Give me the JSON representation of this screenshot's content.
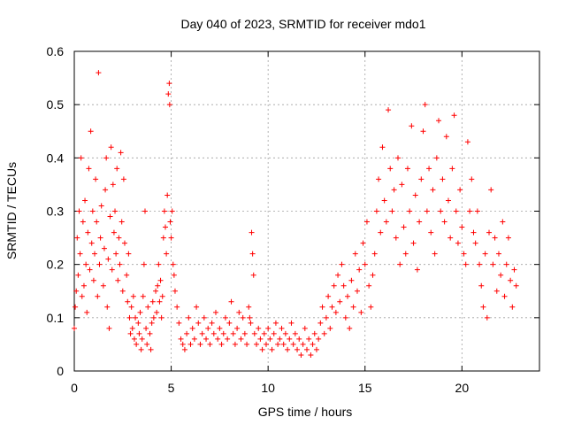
{
  "chart_data": {
    "type": "scatter",
    "title": "Day 040 of 2023, SRMTID for receiver mdo1",
    "xlabel": "GPS time / hours",
    "ylabel": "SRMTID / TECUs",
    "xlim": [
      0,
      24
    ],
    "ylim": [
      0,
      0.6
    ],
    "xticks": [
      0,
      5,
      10,
      15,
      20
    ],
    "xtick_labels": [
      "0",
      "5",
      "10",
      "15",
      "20"
    ],
    "yticks": [
      0,
      0.1,
      0.2,
      0.3,
      0.4,
      0.5,
      0.6
    ],
    "ytick_labels": [
      "0",
      "0.1",
      "0.2",
      "0.3",
      "0.4",
      "0.5",
      "0.6"
    ],
    "grid": true,
    "marker": "plus",
    "color": "#ff0000",
    "series": [
      {
        "name": "SRMTID",
        "points": [
          [
            0.0,
            0.08
          ],
          [
            0.05,
            0.12
          ],
          [
            0.1,
            0.15
          ],
          [
            0.15,
            0.25
          ],
          [
            0.2,
            0.18
          ],
          [
            0.25,
            0.3
          ],
          [
            0.3,
            0.22
          ],
          [
            0.35,
            0.4
          ],
          [
            0.4,
            0.14
          ],
          [
            0.45,
            0.28
          ],
          [
            0.5,
            0.16
          ],
          [
            0.55,
            0.32
          ],
          [
            0.6,
            0.2
          ],
          [
            0.65,
            0.11
          ],
          [
            0.7,
            0.26
          ],
          [
            0.75,
            0.38
          ],
          [
            0.8,
            0.19
          ],
          [
            0.85,
            0.45
          ],
          [
            0.9,
            0.24
          ],
          [
            0.95,
            0.3
          ],
          [
            1.0,
            0.17
          ],
          [
            1.05,
            0.22
          ],
          [
            1.1,
            0.36
          ],
          [
            1.15,
            0.28
          ],
          [
            1.2,
            0.14
          ],
          [
            1.25,
            0.56
          ],
          [
            1.3,
            0.2
          ],
          [
            1.35,
            0.25
          ],
          [
            1.4,
            0.31
          ],
          [
            1.5,
            0.16
          ],
          [
            1.55,
            0.23
          ],
          [
            1.6,
            0.34
          ],
          [
            1.65,
            0.4
          ],
          [
            1.7,
            0.12
          ],
          [
            1.75,
            0.21
          ],
          [
            1.8,
            0.08
          ],
          [
            1.85,
            0.29
          ],
          [
            1.9,
            0.42
          ],
          [
            1.95,
            0.19
          ],
          [
            2.0,
            0.35
          ],
          [
            2.05,
            0.26
          ],
          [
            2.1,
            0.3
          ],
          [
            2.15,
            0.22
          ],
          [
            2.2,
            0.38
          ],
          [
            2.25,
            0.17
          ],
          [
            2.3,
            0.25
          ],
          [
            2.35,
            0.2
          ],
          [
            2.4,
            0.41
          ],
          [
            2.45,
            0.28
          ],
          [
            2.5,
            0.15
          ],
          [
            2.55,
            0.36
          ],
          [
            2.6,
            0.24
          ],
          [
            2.7,
            0.18
          ],
          [
            2.75,
            0.13
          ],
          [
            2.8,
            0.22
          ],
          [
            2.85,
            0.1
          ],
          [
            2.9,
            0.07
          ],
          [
            2.95,
            0.12
          ],
          [
            3.0,
            0.08
          ],
          [
            3.05,
            0.14
          ],
          [
            3.1,
            0.06
          ],
          [
            3.15,
            0.1
          ],
          [
            3.2,
            0.05
          ],
          [
            3.3,
            0.09
          ],
          [
            3.35,
            0.07
          ],
          [
            3.4,
            0.11
          ],
          [
            3.45,
            0.04
          ],
          [
            3.5,
            0.06
          ],
          [
            3.55,
            0.14
          ],
          [
            3.6,
            0.2
          ],
          [
            3.65,
            0.3
          ],
          [
            3.7,
            0.08
          ],
          [
            3.75,
            0.05
          ],
          [
            3.8,
            0.12
          ],
          [
            3.9,
            0.07
          ],
          [
            3.95,
            0.04
          ],
          [
            4.0,
            0.09
          ],
          [
            4.05,
            0.13
          ],
          [
            4.1,
            0.1
          ],
          [
            4.2,
            0.15
          ],
          [
            4.25,
            0.11
          ],
          [
            4.3,
            0.16
          ],
          [
            4.35,
            0.2
          ],
          [
            4.4,
            0.13
          ],
          [
            4.45,
            0.17
          ],
          [
            4.5,
            0.1
          ],
          [
            4.55,
            0.14
          ],
          [
            4.6,
            0.25
          ],
          [
            4.65,
            0.3
          ],
          [
            4.7,
            0.27
          ],
          [
            4.75,
            0.22
          ],
          [
            4.8,
            0.33
          ],
          [
            4.85,
            0.52
          ],
          [
            4.9,
            0.54
          ],
          [
            4.92,
            0.5
          ],
          [
            4.95,
            0.28
          ],
          [
            5.0,
            0.25
          ],
          [
            5.05,
            0.3
          ],
          [
            5.1,
            0.2
          ],
          [
            5.15,
            0.18
          ],
          [
            5.2,
            0.15
          ],
          [
            5.3,
            0.12
          ],
          [
            5.4,
            0.09
          ],
          [
            5.5,
            0.06
          ],
          [
            5.6,
            0.05
          ],
          [
            5.7,
            0.04
          ],
          [
            5.8,
            0.07
          ],
          [
            5.9,
            0.1
          ],
          [
            6.0,
            0.05
          ],
          [
            6.1,
            0.08
          ],
          [
            6.2,
            0.06
          ],
          [
            6.3,
            0.12
          ],
          [
            6.4,
            0.09
          ],
          [
            6.5,
            0.05
          ],
          [
            6.6,
            0.07
          ],
          [
            6.7,
            0.1
          ],
          [
            6.8,
            0.06
          ],
          [
            6.9,
            0.08
          ],
          [
            7.0,
            0.05
          ],
          [
            7.1,
            0.09
          ],
          [
            7.2,
            0.07
          ],
          [
            7.3,
            0.11
          ],
          [
            7.4,
            0.06
          ],
          [
            7.5,
            0.08
          ],
          [
            7.6,
            0.05
          ],
          [
            7.7,
            0.07
          ],
          [
            7.8,
            0.1
          ],
          [
            7.9,
            0.06
          ],
          [
            8.0,
            0.09
          ],
          [
            8.1,
            0.13
          ],
          [
            8.2,
            0.07
          ],
          [
            8.3,
            0.05
          ],
          [
            8.4,
            0.08
          ],
          [
            8.5,
            0.11
          ],
          [
            8.6,
            0.06
          ],
          [
            8.7,
            0.1
          ],
          [
            8.8,
            0.07
          ],
          [
            8.9,
            0.05
          ],
          [
            9.0,
            0.12
          ],
          [
            9.05,
            0.1
          ],
          [
            9.1,
            0.09
          ],
          [
            9.15,
            0.26
          ],
          [
            9.2,
            0.22
          ],
          [
            9.25,
            0.18
          ],
          [
            9.3,
            0.07
          ],
          [
            9.4,
            0.05
          ],
          [
            9.5,
            0.08
          ],
          [
            9.6,
            0.06
          ],
          [
            9.7,
            0.04
          ],
          [
            9.8,
            0.07
          ],
          [
            9.9,
            0.05
          ],
          [
            10.0,
            0.08
          ],
          [
            10.1,
            0.06
          ],
          [
            10.2,
            0.04
          ],
          [
            10.3,
            0.07
          ],
          [
            10.4,
            0.09
          ],
          [
            10.5,
            0.05
          ],
          [
            10.6,
            0.06
          ],
          [
            10.7,
            0.08
          ],
          [
            10.8,
            0.05
          ],
          [
            10.9,
            0.07
          ],
          [
            11.0,
            0.04
          ],
          [
            11.1,
            0.06
          ],
          [
            11.2,
            0.09
          ],
          [
            11.3,
            0.05
          ],
          [
            11.4,
            0.07
          ],
          [
            11.5,
            0.04
          ],
          [
            11.6,
            0.06
          ],
          [
            11.7,
            0.03
          ],
          [
            11.8,
            0.05
          ],
          [
            11.9,
            0.08
          ],
          [
            12.0,
            0.04
          ],
          [
            12.1,
            0.06
          ],
          [
            12.2,
            0.03
          ],
          [
            12.3,
            0.05
          ],
          [
            12.4,
            0.07
          ],
          [
            12.5,
            0.04
          ],
          [
            12.6,
            0.06
          ],
          [
            12.7,
            0.09
          ],
          [
            12.8,
            0.12
          ],
          [
            12.9,
            0.07
          ],
          [
            13.0,
            0.1
          ],
          [
            13.1,
            0.14
          ],
          [
            13.2,
            0.08
          ],
          [
            13.3,
            0.12
          ],
          [
            13.4,
            0.16
          ],
          [
            13.5,
            0.11
          ],
          [
            13.6,
            0.18
          ],
          [
            13.7,
            0.13
          ],
          [
            13.8,
            0.2
          ],
          [
            13.9,
            0.16
          ],
          [
            14.0,
            0.1
          ],
          [
            14.1,
            0.14
          ],
          [
            14.2,
            0.08
          ],
          [
            14.3,
            0.17
          ],
          [
            14.4,
            0.12
          ],
          [
            14.5,
            0.22
          ],
          [
            14.6,
            0.15
          ],
          [
            14.7,
            0.19
          ],
          [
            14.8,
            0.11
          ],
          [
            14.9,
            0.24
          ],
          [
            15.0,
            0.2
          ],
          [
            15.1,
            0.28
          ],
          [
            15.2,
            0.16
          ],
          [
            15.3,
            0.12
          ],
          [
            15.4,
            0.18
          ],
          [
            15.5,
            0.22
          ],
          [
            15.6,
            0.3
          ],
          [
            15.7,
            0.36
          ],
          [
            15.8,
            0.26
          ],
          [
            15.9,
            0.42
          ],
          [
            16.0,
            0.32
          ],
          [
            16.1,
            0.28
          ],
          [
            16.2,
            0.49
          ],
          [
            16.3,
            0.38
          ],
          [
            16.4,
            0.3
          ],
          [
            16.5,
            0.34
          ],
          [
            16.6,
            0.25
          ],
          [
            16.7,
            0.4
          ],
          [
            16.8,
            0.2
          ],
          [
            16.9,
            0.35
          ],
          [
            17.0,
            0.27
          ],
          [
            17.1,
            0.22
          ],
          [
            17.2,
            0.38
          ],
          [
            17.3,
            0.3
          ],
          [
            17.4,
            0.46
          ],
          [
            17.5,
            0.24
          ],
          [
            17.6,
            0.33
          ],
          [
            17.7,
            0.19
          ],
          [
            17.8,
            0.28
          ],
          [
            17.9,
            0.36
          ],
          [
            18.0,
            0.45
          ],
          [
            18.1,
            0.5
          ],
          [
            18.2,
            0.3
          ],
          [
            18.3,
            0.38
          ],
          [
            18.4,
            0.26
          ],
          [
            18.5,
            0.34
          ],
          [
            18.6,
            0.22
          ],
          [
            18.7,
            0.4
          ],
          [
            18.8,
            0.47
          ],
          [
            18.9,
            0.3
          ],
          [
            19.0,
            0.36
          ],
          [
            19.1,
            0.28
          ],
          [
            19.2,
            0.44
          ],
          [
            19.3,
            0.32
          ],
          [
            19.4,
            0.25
          ],
          [
            19.5,
            0.38
          ],
          [
            19.6,
            0.48
          ],
          [
            19.7,
            0.3
          ],
          [
            19.8,
            0.24
          ],
          [
            19.9,
            0.34
          ],
          [
            20.0,
            0.27
          ],
          [
            20.1,
            0.22
          ],
          [
            20.2,
            0.2
          ],
          [
            20.3,
            0.43
          ],
          [
            20.4,
            0.3
          ],
          [
            20.5,
            0.36
          ],
          [
            20.6,
            0.26
          ],
          [
            20.7,
            0.24
          ],
          [
            20.8,
            0.3
          ],
          [
            20.9,
            0.2
          ],
          [
            21.0,
            0.16
          ],
          [
            21.1,
            0.12
          ],
          [
            21.2,
            0.22
          ],
          [
            21.3,
            0.1
          ],
          [
            21.4,
            0.26
          ],
          [
            21.5,
            0.34
          ],
          [
            21.6,
            0.2
          ],
          [
            21.7,
            0.25
          ],
          [
            21.8,
            0.15
          ],
          [
            21.9,
            0.22
          ],
          [
            22.0,
            0.18
          ],
          [
            22.1,
            0.28
          ],
          [
            22.2,
            0.14
          ],
          [
            22.3,
            0.2
          ],
          [
            22.4,
            0.25
          ],
          [
            22.5,
            0.17
          ],
          [
            22.6,
            0.12
          ],
          [
            22.7,
            0.19
          ],
          [
            22.8,
            0.16
          ]
        ]
      }
    ]
  }
}
